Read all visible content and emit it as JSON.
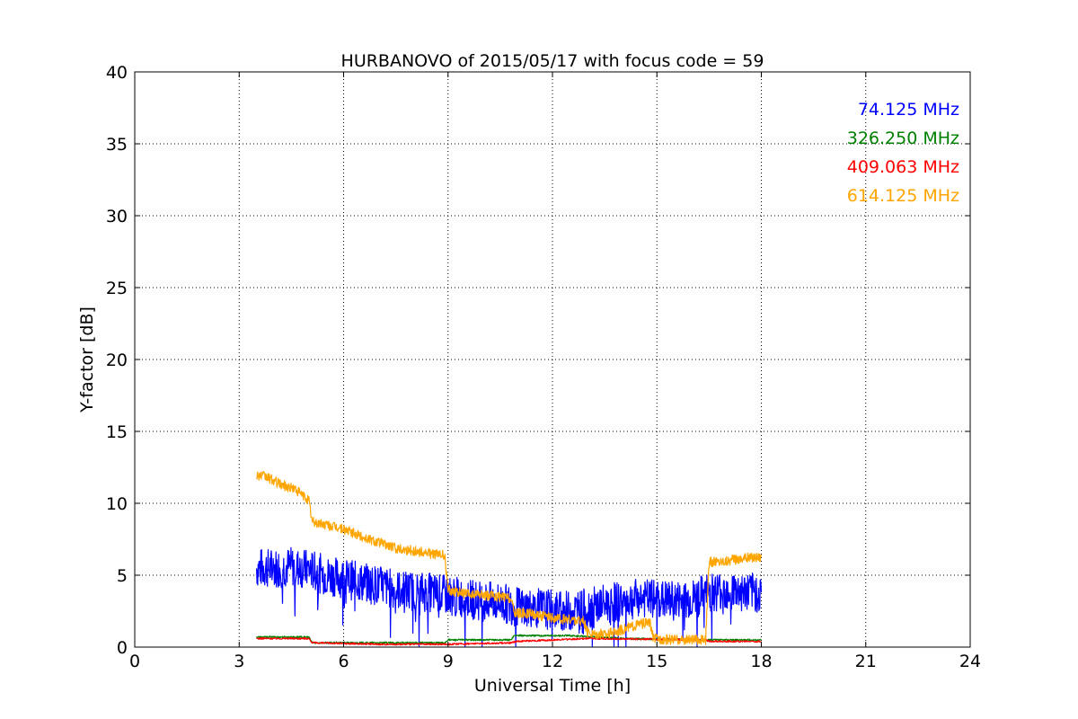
{
  "chart_data": {
    "type": "line",
    "title": "HURBANOVO of 2015/05/17 with focus code = 59",
    "xlabel": "Universal Time [h]",
    "ylabel": "Y-factor [dB]",
    "xlim": [
      0,
      24
    ],
    "ylim": [
      0,
      40
    ],
    "xticks": [
      "0",
      "3",
      "6",
      "9",
      "12",
      "15",
      "18",
      "21",
      "24"
    ],
    "yticks": [
      "0",
      "5",
      "10",
      "15",
      "20",
      "25",
      "30",
      "35",
      "40"
    ],
    "grid": true,
    "legend_position": "top-right",
    "series": [
      {
        "name": "74.125 MHz",
        "color": "#0000ff",
        "x": [
          3.5,
          4.0,
          4.5,
          5.0,
          5.5,
          6.0,
          6.5,
          7.0,
          7.5,
          8.0,
          8.5,
          9.0,
          9.5,
          10.0,
          10.5,
          11.0,
          11.5,
          12.0,
          12.5,
          13.0,
          13.5,
          14.0,
          14.5,
          15.0,
          15.5,
          16.0,
          16.5,
          17.0,
          17.5,
          18.0
        ],
        "y": [
          5.5,
          5.5,
          5.6,
          5.4,
          5.0,
          4.8,
          4.5,
          4.3,
          4.0,
          3.9,
          3.8,
          3.6,
          3.4,
          3.2,
          3.1,
          2.8,
          2.7,
          2.6,
          2.5,
          2.7,
          3.0,
          3.2,
          3.4,
          3.3,
          3.2,
          3.3,
          3.8,
          4.0,
          3.8,
          3.8
        ]
      },
      {
        "name": "326.250 MHz",
        "color": "#008000",
        "x": [
          3.5,
          5.0,
          5.1,
          8.9,
          9.0,
          10.8,
          10.9,
          12.5,
          14.0,
          16.4,
          16.5,
          18.0
        ],
        "y": [
          0.7,
          0.7,
          0.3,
          0.3,
          0.5,
          0.5,
          0.8,
          0.8,
          0.6,
          0.5,
          0.5,
          0.5
        ]
      },
      {
        "name": "409.063 MHz",
        "color": "#ff0000",
        "x": [
          3.5,
          5.0,
          5.1,
          7.0,
          8.9,
          9.0,
          10.8,
          11.0,
          13.0,
          16.4,
          16.5,
          18.0
        ],
        "y": [
          0.6,
          0.6,
          0.3,
          0.2,
          0.2,
          0.2,
          0.3,
          0.4,
          0.6,
          0.5,
          0.4,
          0.4
        ]
      },
      {
        "name": "614.125 MHz",
        "color": "#ffa500",
        "x": [
          3.5,
          3.8,
          4.2,
          4.6,
          5.0,
          5.1,
          5.5,
          6.0,
          6.5,
          7.0,
          7.5,
          8.0,
          8.5,
          8.9,
          9.0,
          9.5,
          10.0,
          10.5,
          10.8,
          10.9,
          11.5,
          12.0,
          12.5,
          12.9,
          13.0,
          13.5,
          14.0,
          14.5,
          14.8,
          14.9,
          15.5,
          16.0,
          16.4,
          16.5,
          17.0,
          17.5,
          18.0
        ],
        "y": [
          12.0,
          11.8,
          11.3,
          11.0,
          10.2,
          8.7,
          8.5,
          8.2,
          7.7,
          7.3,
          6.9,
          6.7,
          6.5,
          6.4,
          4.0,
          3.7,
          3.6,
          3.5,
          3.4,
          2.4,
          2.3,
          2.0,
          1.9,
          1.8,
          1.0,
          0.9,
          1.2,
          1.6,
          1.7,
          0.6,
          0.5,
          0.5,
          0.5,
          5.9,
          6.0,
          6.2,
          6.3
        ]
      }
    ]
  }
}
